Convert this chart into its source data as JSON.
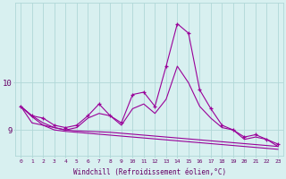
{
  "xlabel": "Windchill (Refroidissement éolien,°C)",
  "hours": [
    0,
    1,
    2,
    3,
    4,
    5,
    6,
    7,
    8,
    9,
    10,
    11,
    12,
    13,
    14,
    15,
    16,
    17,
    18,
    19,
    20,
    21,
    22,
    23
  ],
  "s_main": [
    9.5,
    9.3,
    9.25,
    9.1,
    9.05,
    9.1,
    9.3,
    9.55,
    9.3,
    9.15,
    9.75,
    9.8,
    9.5,
    10.35,
    11.25,
    11.05,
    9.85,
    9.45,
    9.1,
    9.0,
    8.85,
    8.9,
    8.8,
    8.7
  ],
  "s_smooth": [
    9.5,
    9.15,
    9.1,
    9.05,
    9.0,
    9.05,
    9.25,
    9.35,
    9.3,
    9.1,
    9.45,
    9.55,
    9.35,
    9.65,
    10.35,
    10.0,
    9.5,
    9.25,
    9.05,
    9.0,
    8.8,
    8.85,
    8.8,
    8.65
  ],
  "s_trend1": [
    9.5,
    9.3,
    9.15,
    9.05,
    9.0,
    8.98,
    8.97,
    8.96,
    8.95,
    8.93,
    8.91,
    8.89,
    8.87,
    8.85,
    8.83,
    8.81,
    8.79,
    8.77,
    8.75,
    8.73,
    8.71,
    8.69,
    8.67,
    8.65
  ],
  "s_trend2": [
    9.5,
    9.28,
    9.1,
    9.0,
    8.97,
    8.95,
    8.93,
    8.91,
    8.89,
    8.87,
    8.85,
    8.83,
    8.81,
    8.79,
    8.77,
    8.75,
    8.73,
    8.71,
    8.69,
    8.67,
    8.65,
    8.63,
    8.61,
    8.59
  ],
  "line_color": "#990099",
  "bg_color": "#d8f0f0",
  "grid_color": "#b0d8d8",
  "ylim_min": 8.45,
  "ylim_max": 11.7,
  "yticks": [
    9,
    10
  ],
  "font_color": "#660066"
}
